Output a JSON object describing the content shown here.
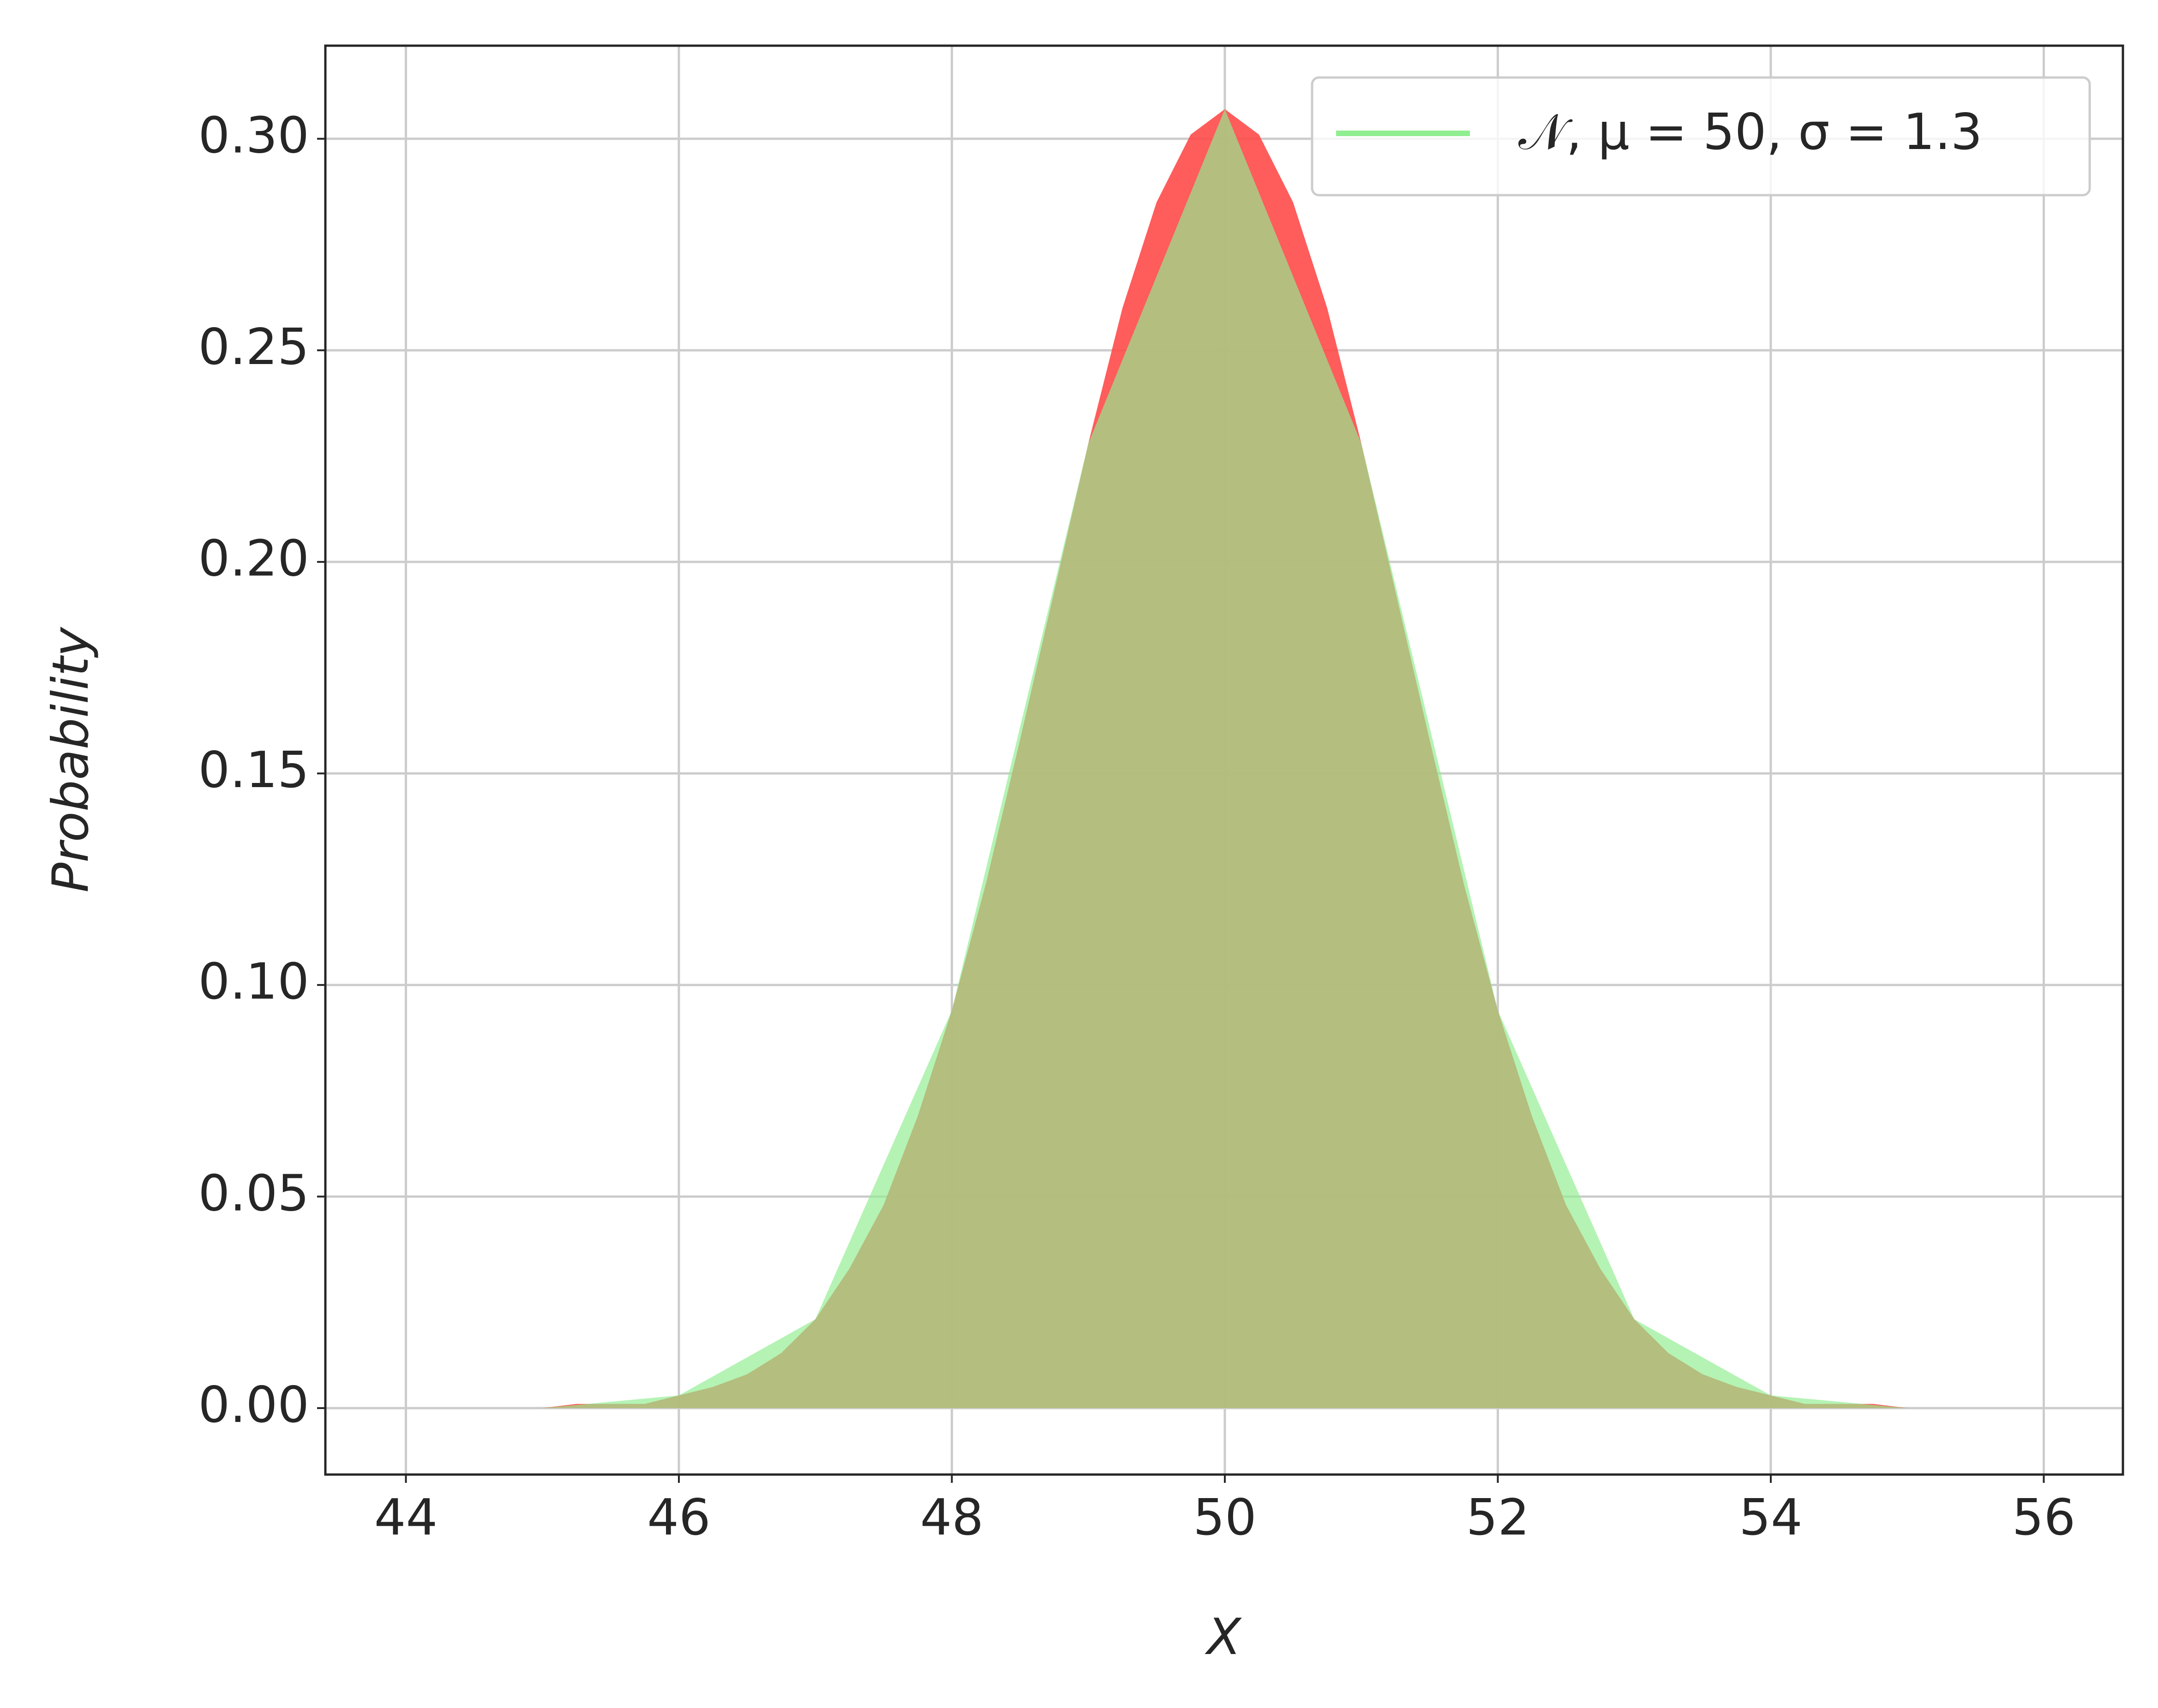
{
  "chart_data": {
    "type": "area",
    "x_label": "X",
    "y_label": "Probability",
    "xlim": [
      43.41,
      56.58
    ],
    "ylim": [
      -0.0157,
      0.322
    ],
    "xticks": [
      44,
      46,
      48,
      50,
      52,
      54,
      56
    ],
    "yticks": [
      {
        "value": 0,
        "label": "0.00"
      },
      {
        "value": 0.05,
        "label": "0.05"
      },
      {
        "value": 0.1,
        "label": "0.10"
      },
      {
        "value": 0.15,
        "label": "0.15"
      },
      {
        "value": 0.2,
        "label": "0.20"
      },
      {
        "value": 0.25,
        "label": "0.25"
      },
      {
        "value": 0.3,
        "label": "0.30"
      }
    ],
    "grid": true,
    "legend": "upper right",
    "series": [
      {
        "color": "#ff4a4a",
        "x": [
          44.5,
          44.75,
          45,
          45.25,
          45.5,
          45.75,
          46,
          46.25,
          46.5,
          46.75,
          47,
          47.25,
          47.5,
          47.75,
          48,
          48.25,
          48.5,
          48.75,
          49,
          49.25,
          49.5,
          49.75,
          50,
          50.25,
          50.5,
          50.75,
          51,
          51.25,
          51.5,
          51.75,
          52,
          52.25,
          52.5,
          52.75,
          53,
          53.25,
          53.5,
          53.75,
          54,
          54.25,
          54.5,
          54.75,
          55,
          55.25,
          55.5
        ],
        "values": [
          0,
          0,
          0,
          0.001,
          0.001,
          0.001,
          0.003,
          0.005,
          0.008,
          0.013,
          0.021,
          0.033,
          0.048,
          0.069,
          0.094,
          0.124,
          0.158,
          0.193,
          0.228,
          0.26,
          0.285,
          0.301,
          0.307,
          0.301,
          0.285,
          0.26,
          0.228,
          0.193,
          0.158,
          0.124,
          0.094,
          0.069,
          0.048,
          0.033,
          0.021,
          0.013,
          0.008,
          0.005,
          0.003,
          0.001,
          0.001,
          0.001,
          0,
          0,
          0
        ]
      },
      {
        "name": "𝒩, μ = 50, σ = 1.3",
        "color": "#90ee90",
        "x": [
          45,
          46,
          47,
          48,
          49,
          50,
          51,
          52,
          53,
          54,
          55
        ],
        "values": [
          0,
          0.003,
          0.021,
          0.094,
          0.228,
          0.307,
          0.228,
          0.094,
          0.021,
          0.003,
          0
        ]
      }
    ]
  }
}
